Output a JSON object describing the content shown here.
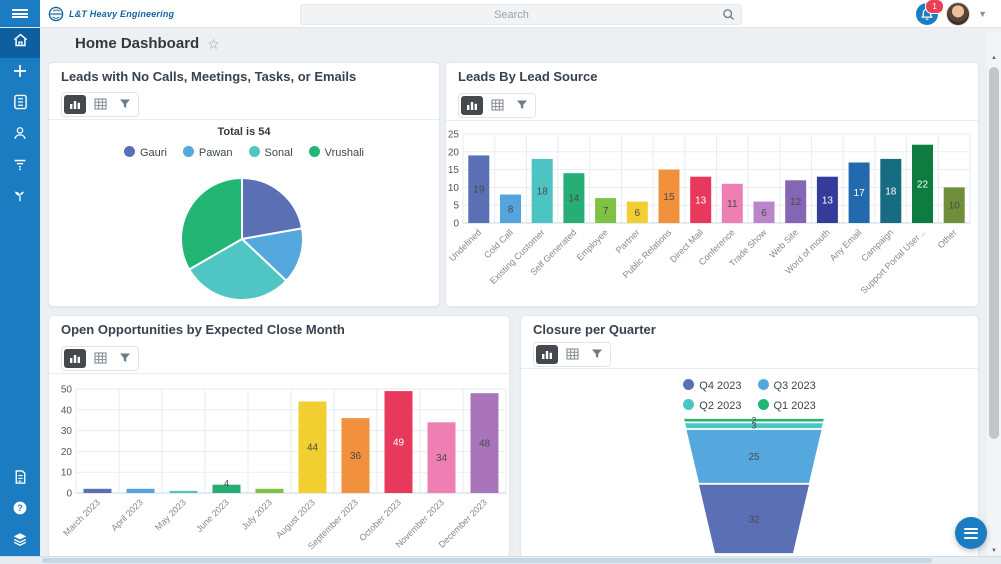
{
  "topbar": {
    "brand": "L&T Heavy Engineering",
    "search_placeholder": "Search",
    "notification_count": "1",
    "icons": [
      "hamburger-menu",
      "brand-logo",
      "search-magnifier",
      "notification-bell",
      "user-avatar",
      "chevron-down"
    ]
  },
  "header": {
    "title": "Home Dashboard",
    "favorite_icon": "star-outline"
  },
  "sidebar": {
    "top_icons": [
      "home",
      "plus-create",
      "modules-grid",
      "contacts-person",
      "filter-lines",
      "opportunities-plant"
    ],
    "bottom_icons": [
      "documents-file",
      "help-question",
      "layers-stack"
    ],
    "active_item": "home",
    "color": "#1b7cc1",
    "active_color": "#0d5f9f"
  },
  "widget_toolbar_icons": [
    "bar-chart-view",
    "table-view",
    "filter"
  ],
  "widgets": [
    {
      "title": "Leads with No Calls, Meetings, Tasks, or Emails"
    },
    {
      "title": "Leads By Lead Source"
    },
    {
      "title": "Open Opportunities by Expected Close Month"
    },
    {
      "title": "Closure per Quarter"
    }
  ],
  "floating_button": {
    "icon": "menu-lines",
    "color": "#1b7cc1"
  },
  "chart_data": [
    {
      "type": "pie",
      "title": "Leads with No Calls, Meetings, Tasks, or Emails",
      "total_label": "Total is 54",
      "labels": [
        "Gauri",
        "Pawan",
        "Sonal",
        "Vrushali"
      ],
      "values": [
        12,
        8,
        16,
        18
      ],
      "colors": [
        "#5b6fb5",
        "#55a8dd",
        "#4fc6c3",
        "#23b573"
      ],
      "legend_position": "top",
      "start_angle_deg": -90,
      "direction": "clockwise"
    },
    {
      "type": "bar",
      "title": "Leads By Lead Source",
      "categories": [
        "Undefined",
        "Cold Call",
        "Existing Customer",
        "Self Generated",
        "Employee",
        "Partner",
        "Public Relations",
        "Direct Mail",
        "Conference",
        "Trade Show",
        "Web Site",
        "Word of mouth",
        "Any Email",
        "Campaign",
        "Support Portal User ..",
        "Other"
      ],
      "values": [
        19,
        8,
        18,
        14,
        7,
        6,
        15,
        13,
        11,
        6,
        12,
        13,
        17,
        18,
        22,
        10
      ],
      "colors": [
        "#5b6fb5",
        "#55a4dc",
        "#4cc4c4",
        "#27ae74",
        "#7fc243",
        "#f2cf31",
        "#f2913d",
        "#e8395c",
        "#ee7fb2",
        "#b886c9",
        "#8566b4",
        "#333d99",
        "#2369ad",
        "#176c82",
        "#0e7c41",
        "#6f8f3c"
      ],
      "ylim": [
        0,
        25
      ],
      "yticks": [
        0,
        5,
        10,
        15,
        20,
        25
      ],
      "grid": true,
      "xlabel": "",
      "ylabel": "",
      "value_labels": true
    },
    {
      "type": "bar",
      "title": "Open Opportunities by Expected Close Month",
      "categories": [
        "March 2023",
        "April 2023",
        "May 2023",
        "June 2023",
        "July 2023",
        "August 2023",
        "September 2023",
        "October 2023",
        "November 2023",
        "December 2023"
      ],
      "values": [
        2,
        2,
        1,
        4,
        2,
        44,
        36,
        49,
        34,
        48
      ],
      "colors": [
        "#5b6fb5",
        "#55a4dc",
        "#4cc4c4",
        "#27ae74",
        "#7fc243",
        "#f2cf31",
        "#f2913d",
        "#e8395c",
        "#ee7fb2",
        "#a974ba"
      ],
      "ylim": [
        0,
        50
      ],
      "yticks": [
        0,
        10,
        20,
        30,
        40,
        50
      ],
      "grid": true,
      "xlabel": "",
      "ylabel": "",
      "value_labels": true
    },
    {
      "type": "funnel",
      "title": "Closure per Quarter",
      "legend": [
        "Q4 2023",
        "Q3 2023",
        "Q2 2023",
        "Q1 2023"
      ],
      "legend_colors": [
        "#5b6fb5",
        "#55a8dd",
        "#4cc6c3",
        "#23b573"
      ],
      "legend_rows": [
        [
          "Q4 2023",
          "Q3 2023"
        ],
        [
          "Q2 2023",
          "Q1 2023"
        ]
      ],
      "segments_top_to_bottom": [
        "Q1 2023",
        "Q2 2023",
        "Q3 2023",
        "Q4 2023"
      ],
      "values_top_to_bottom": [
        2,
        3,
        25,
        32
      ],
      "colors_top_to_bottom": [
        "#23b573",
        "#4cc6c3",
        "#55a8dd",
        "#5b6fb5"
      ],
      "legend_position": "top"
    }
  ]
}
